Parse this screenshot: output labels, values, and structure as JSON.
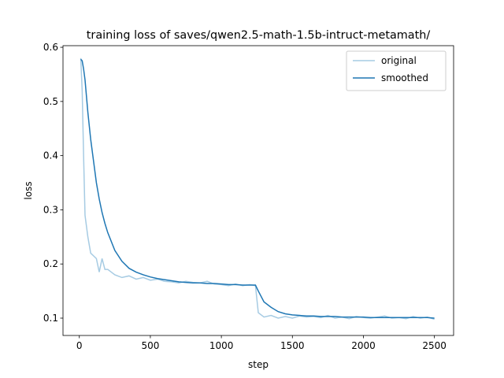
{
  "chart_data": {
    "type": "line",
    "title": "training loss of saves/qwen2.5-math-1.5b-intruct-metamath/",
    "xlabel": "step",
    "ylabel": "loss",
    "x": [
      10,
      20,
      30,
      40,
      60,
      80,
      100,
      120,
      140,
      160,
      180,
      200,
      250,
      300,
      350,
      400,
      450,
      500,
      550,
      600,
      650,
      700,
      750,
      800,
      850,
      900,
      950,
      1000,
      1050,
      1100,
      1150,
      1200,
      1240,
      1260,
      1300,
      1350,
      1400,
      1450,
      1500,
      1550,
      1600,
      1650,
      1700,
      1750,
      1800,
      1850,
      1900,
      1950,
      2000,
      2050,
      2100,
      2150,
      2200,
      2250,
      2300,
      2350,
      2400,
      2450,
      2500
    ],
    "series": [
      {
        "name": "original",
        "color": "#a6cbe3",
        "values": [
          0.58,
          0.52,
          0.4,
          0.29,
          0.25,
          0.22,
          0.215,
          0.21,
          0.185,
          0.21,
          0.19,
          0.19,
          0.18,
          0.175,
          0.178,
          0.172,
          0.175,
          0.17,
          0.172,
          0.168,
          0.167,
          0.165,
          0.168,
          0.166,
          0.165,
          0.168,
          0.163,
          0.162,
          0.16,
          0.163,
          0.16,
          0.162,
          0.16,
          0.11,
          0.102,
          0.105,
          0.1,
          0.103,
          0.1,
          0.104,
          0.102,
          0.103,
          0.101,
          0.105,
          0.1,
          0.102,
          0.099,
          0.103,
          0.101,
          0.1,
          0.102,
          0.104,
          0.1,
          0.101,
          0.099,
          0.103,
          0.1,
          0.102,
          0.098
        ]
      },
      {
        "name": "smoothed",
        "color": "#1f77b4",
        "values": [
          0.578,
          0.575,
          0.56,
          0.54,
          0.48,
          0.43,
          0.39,
          0.35,
          0.32,
          0.295,
          0.275,
          0.258,
          0.225,
          0.205,
          0.192,
          0.185,
          0.18,
          0.176,
          0.173,
          0.171,
          0.169,
          0.167,
          0.166,
          0.165,
          0.165,
          0.164,
          0.164,
          0.163,
          0.162,
          0.162,
          0.161,
          0.161,
          0.161,
          0.15,
          0.13,
          0.12,
          0.112,
          0.108,
          0.106,
          0.105,
          0.104,
          0.104,
          0.103,
          0.103,
          0.103,
          0.102,
          0.102,
          0.102,
          0.102,
          0.101,
          0.101,
          0.101,
          0.101,
          0.101,
          0.101,
          0.101,
          0.101,
          0.101,
          0.1
        ]
      }
    ],
    "xlim": [
      -115,
      2635
    ],
    "ylim": [
      0.068,
      0.603
    ],
    "xticks": [
      0,
      500,
      1000,
      1500,
      2000,
      2500
    ],
    "yticks": [
      0.1,
      0.2,
      0.3,
      0.4,
      0.5,
      0.6
    ],
    "legend": "upper right"
  }
}
